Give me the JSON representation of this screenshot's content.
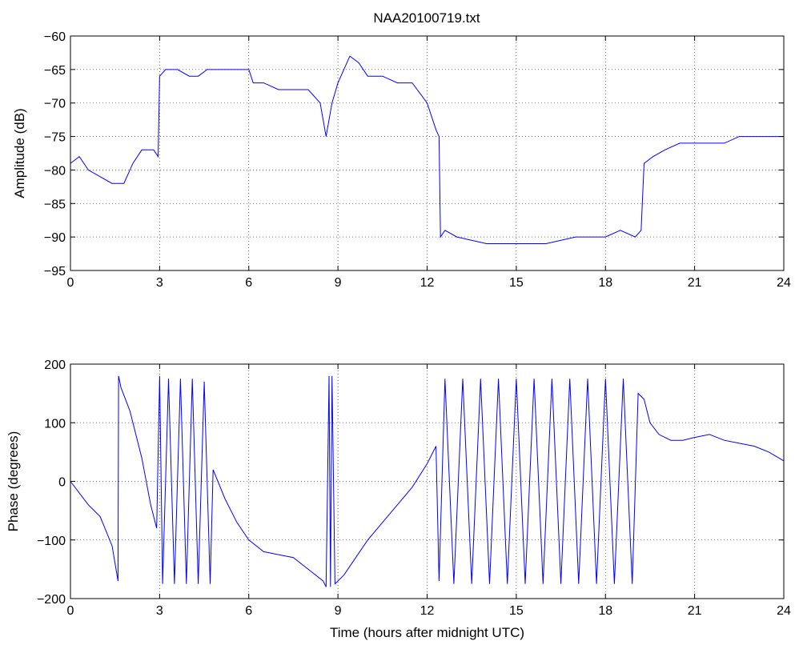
{
  "title": "NAA20100719.txt",
  "series_color": "#0000ff",
  "chart_data": [
    {
      "type": "line",
      "ylabel": "Amplitude (dB)",
      "xlabel": "",
      "xlim": [
        0,
        24
      ],
      "ylim": [
        -95,
        -60
      ],
      "xticks": [
        "0",
        "3",
        "6",
        "9",
        "12",
        "15",
        "18",
        "21",
        "24"
      ],
      "yticks": [
        "-60",
        "-65",
        "-70",
        "-75",
        "-80",
        "-85",
        "-90",
        "-95"
      ],
      "grid": true,
      "series": [
        {
          "x": [
            0,
            0.3,
            0.6,
            1.0,
            1.4,
            1.8,
            2.1,
            2.4,
            2.8,
            2.95,
            3.0,
            3.2,
            3.6,
            4.0,
            4.3,
            4.6,
            5.0,
            5.5,
            6.0,
            6.15,
            6.5,
            7.0,
            7.5,
            8.0,
            8.4,
            8.6,
            8.8,
            9.0,
            9.4,
            9.7,
            10.0,
            10.5,
            11.0,
            11.5,
            12.0,
            12.3,
            12.4,
            12.45,
            12.6,
            13.0,
            14.0,
            15.0,
            16.0,
            17.0,
            18.0,
            18.5,
            19.0,
            19.2,
            19.3,
            19.6,
            20.0,
            20.5,
            21.0,
            21.5,
            22.0,
            22.5,
            23.0,
            23.5,
            24.0
          ],
          "y": [
            -79,
            -78,
            -80,
            -81,
            -82,
            -82,
            -79,
            -77,
            -77,
            -78,
            -66,
            -65,
            -65,
            -66,
            -66,
            -65,
            -65,
            -65,
            -65,
            -67,
            -67,
            -68,
            -68,
            -68,
            -70,
            -75,
            -70,
            -67,
            -63,
            -64,
            -66,
            -66,
            -67,
            -67,
            -70,
            -74,
            -75,
            -90,
            -89,
            -90,
            -91,
            -91,
            -91,
            -90,
            -90,
            -89,
            -90,
            -89,
            -79,
            -78,
            -77,
            -76,
            -76,
            -76,
            -76,
            -75,
            -75,
            -75,
            -75
          ]
        }
      ]
    },
    {
      "type": "line",
      "ylabel": "Phase (degrees)",
      "xlabel": "Time (hours after midnight UTC)",
      "xlim": [
        0,
        24
      ],
      "ylim": [
        -200,
        200
      ],
      "xticks": [
        "0",
        "3",
        "6",
        "9",
        "12",
        "15",
        "18",
        "21",
        "24"
      ],
      "yticks": [
        "200",
        "100",
        "0",
        "-100",
        "-200"
      ],
      "grid": true,
      "series": [
        {
          "x": [
            0,
            0.3,
            0.6,
            1.0,
            1.4,
            1.6,
            1.62,
            1.7,
            2.0,
            2.4,
            2.7,
            2.9,
            3.0,
            3.1,
            3.3,
            3.5,
            3.7,
            3.9,
            4.1,
            4.3,
            4.5,
            4.7,
            4.8,
            5.2,
            5.6,
            6.0,
            6.5,
            7.0,
            7.5,
            8.0,
            8.5,
            8.6,
            8.7,
            8.75,
            8.8,
            8.9,
            9.2,
            9.6,
            10.0,
            10.5,
            11.0,
            11.5,
            12.0,
            12.3,
            12.4,
            12.6,
            12.9,
            13.2,
            13.5,
            13.8,
            14.1,
            14.4,
            14.7,
            15.0,
            15.3,
            15.6,
            15.9,
            16.2,
            16.5,
            16.8,
            17.1,
            17.4,
            17.7,
            18.0,
            18.3,
            18.6,
            18.9,
            19.1,
            19.3,
            19.5,
            19.8,
            20.2,
            20.6,
            21.0,
            21.5,
            22.0,
            22.5,
            23.0,
            23.5,
            24.0
          ],
          "y": [
            0,
            -20,
            -40,
            -60,
            -110,
            -170,
            180,
            160,
            120,
            40,
            -40,
            -80,
            180,
            -175,
            175,
            -175,
            175,
            -175,
            175,
            -175,
            170,
            -175,
            20,
            -30,
            -70,
            -100,
            -120,
            -125,
            -130,
            -150,
            -170,
            -180,
            180,
            -180,
            180,
            -175,
            -160,
            -130,
            -100,
            -70,
            -40,
            -10,
            30,
            60,
            -170,
            175,
            -175,
            175,
            -175,
            175,
            -175,
            175,
            -175,
            175,
            -175,
            175,
            -175,
            175,
            -175,
            175,
            -175,
            175,
            -175,
            175,
            -175,
            175,
            -175,
            150,
            140,
            100,
            80,
            70,
            70,
            75,
            80,
            70,
            65,
            60,
            50,
            35
          ]
        }
      ]
    }
  ]
}
